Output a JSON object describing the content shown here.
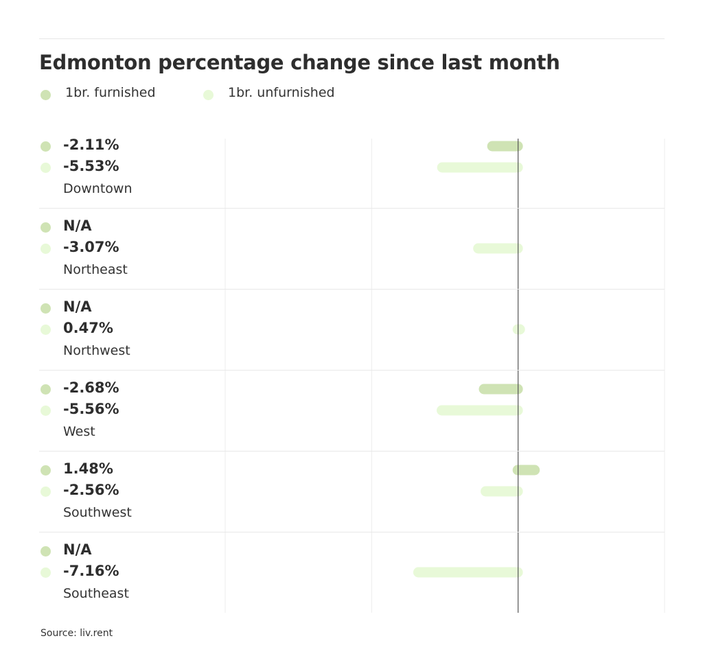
{
  "colors": {
    "furnished": "#cfe3b4",
    "unfurnished": "#e8f9d8",
    "zero_line": "#555555",
    "grid": "#ececec"
  },
  "legend": {
    "furnished_label": "1br. furnished",
    "unfurnished_label": "1br. unfurnished"
  },
  "source": "Source: liv.rent",
  "chart_data": {
    "type": "bar",
    "orientation": "horizontal",
    "title": "Edmonton percentage change since last month",
    "categories": [
      "Downtown",
      "Northeast",
      "Northwest",
      "West",
      "Southwest",
      "Southeast"
    ],
    "series": [
      {
        "name": "1br. furnished",
        "values": [
          -2.11,
          null,
          null,
          -2.68,
          1.48,
          null
        ],
        "labels": [
          "-2.11%",
          "N/A",
          "N/A",
          "-2.68%",
          "1.48%",
          "N/A"
        ]
      },
      {
        "name": "1br. unfurnished",
        "values": [
          -5.53,
          -3.07,
          0.47,
          -5.56,
          -2.56,
          -7.16
        ],
        "labels": [
          "-5.53%",
          "-3.07%",
          "0.47%",
          "-5.56%",
          "-2.56%",
          "-7.16%"
        ]
      }
    ],
    "xlim": [
      -20,
      10
    ],
    "grid": true
  }
}
